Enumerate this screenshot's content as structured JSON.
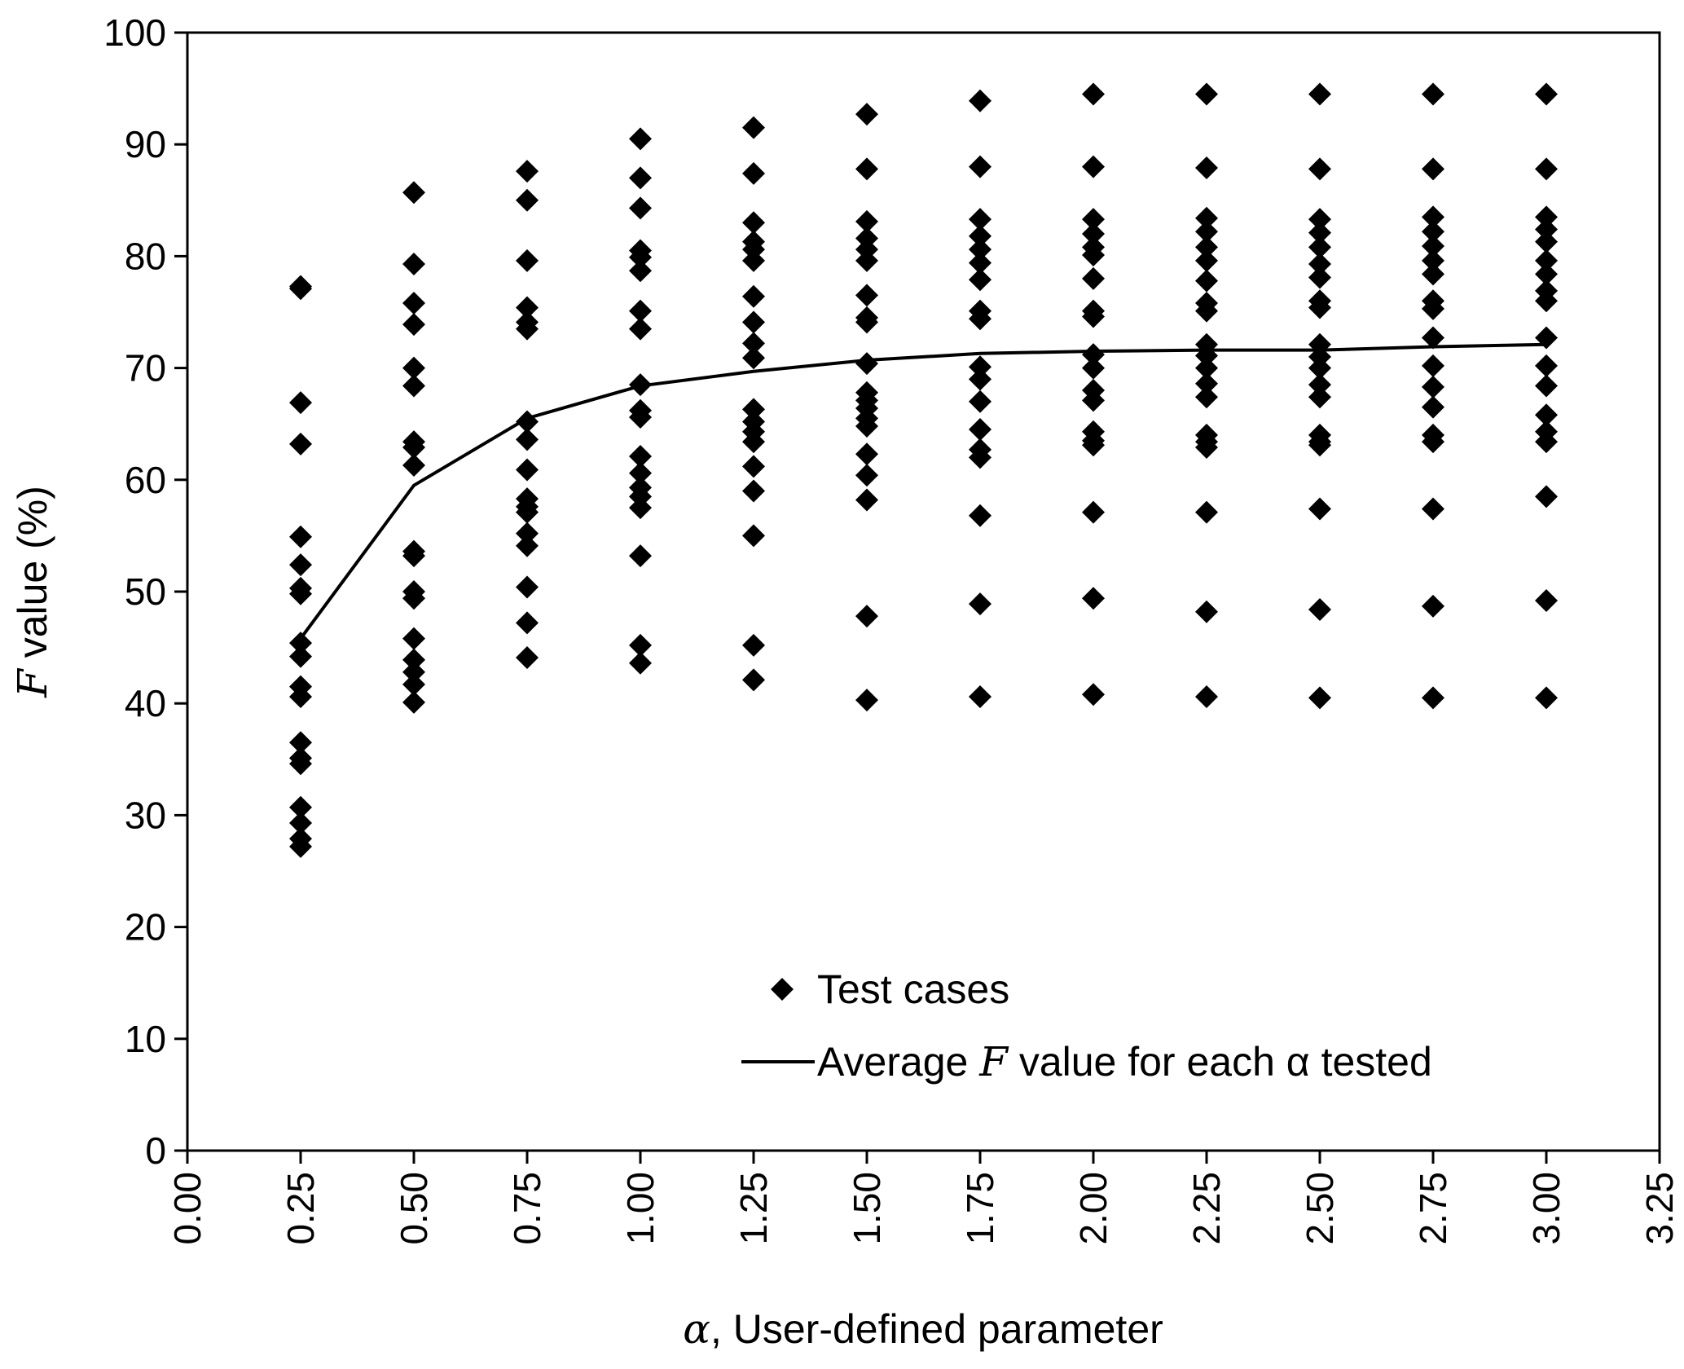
{
  "chart_data": {
    "type": "scatter",
    "title": "",
    "xlabel_symbol": "α",
    "xlabel_rest": ", User-defined parameter",
    "ylabel_symbol": "F",
    "ylabel_rest": " value (%)",
    "xlim": [
      0,
      3.25
    ],
    "ylim": [
      0,
      100
    ],
    "x_ticks": [
      "0.00",
      "0.25",
      "0.50",
      "0.75",
      "1.00",
      "1.25",
      "1.50",
      "1.75",
      "2.00",
      "2.25",
      "2.50",
      "2.75",
      "3.00",
      "3.25"
    ],
    "y_ticks": [
      "0",
      "10",
      "20",
      "30",
      "40",
      "50",
      "60",
      "70",
      "80",
      "90",
      "100"
    ],
    "grid": false,
    "legend_position": "bottom-center",
    "series": [
      {
        "name": "Test cases",
        "kind": "scatter",
        "marker": "diamond",
        "color": "#000000",
        "groups": [
          {
            "x": 0.25,
            "y": [
              77.3,
              77.1,
              66.9,
              63.2,
              54.9,
              52.4,
              50.3,
              49.8,
              45.4,
              44.2,
              41.5,
              40.6,
              36.5,
              35.1,
              34.6,
              30.7,
              29.3,
              27.9,
              27.2
            ]
          },
          {
            "x": 0.5,
            "y": [
              85.7,
              79.3,
              75.8,
              73.9,
              70.0,
              68.4,
              63.4,
              62.9,
              61.3,
              53.6,
              53.2,
              50.0,
              49.4,
              45.8,
              43.9,
              42.8,
              41.7,
              40.1
            ]
          },
          {
            "x": 0.75,
            "y": [
              87.6,
              85.0,
              79.6,
              75.4,
              74.1,
              73.5,
              65.2,
              63.6,
              60.9,
              58.3,
              57.6,
              57.1,
              55.2,
              54.1,
              50.4,
              47.2,
              44.1
            ]
          },
          {
            "x": 1.0,
            "y": [
              90.5,
              87.0,
              84.3,
              80.5,
              79.9,
              78.7,
              75.1,
              73.5,
              68.5,
              66.2,
              65.6,
              62.1,
              60.6,
              59.3,
              58.5,
              57.5,
              53.2,
              45.2,
              43.6
            ]
          },
          {
            "x": 1.25,
            "y": [
              91.5,
              87.4,
              83.0,
              81.3,
              80.6,
              79.6,
              76.4,
              74.1,
              72.2,
              70.9,
              66.3,
              65.2,
              64.3,
              63.4,
              61.2,
              59.0,
              55.0,
              45.2,
              42.1
            ]
          },
          {
            "x": 1.5,
            "y": [
              92.7,
              87.8,
              83.1,
              81.6,
              80.6,
              79.6,
              76.5,
              74.5,
              74.1,
              70.4,
              67.8,
              67.1,
              66.4,
              65.5,
              64.8,
              62.3,
              60.4,
              58.2,
              47.8,
              40.3
            ]
          },
          {
            "x": 1.75,
            "y": [
              93.9,
              88.0,
              83.3,
              81.8,
              80.6,
              79.4,
              77.9,
              75.1,
              74.4,
              70.1,
              69.0,
              67.0,
              64.5,
              62.7,
              62.0,
              56.8,
              48.9,
              40.6
            ]
          },
          {
            "x": 2.0,
            "y": [
              94.5,
              88.0,
              83.3,
              82.0,
              80.8,
              80.1,
              78.0,
              75.1,
              74.6,
              71.2,
              70.0,
              68.0,
              67.1,
              64.3,
              63.5,
              63.1,
              57.1,
              49.4,
              40.8
            ]
          },
          {
            "x": 2.25,
            "y": [
              94.5,
              87.9,
              83.4,
              82.2,
              80.8,
              79.6,
              77.8,
              75.8,
              75.1,
              72.1,
              71.1,
              70.0,
              68.6,
              67.4,
              64.0,
              63.4,
              62.9,
              57.1,
              48.2,
              40.6
            ]
          },
          {
            "x": 2.5,
            "y": [
              94.5,
              87.8,
              83.3,
              82.1,
              80.8,
              79.3,
              78.1,
              76.0,
              75.4,
              72.1,
              71.0,
              70.0,
              68.5,
              67.4,
              64.0,
              63.4,
              63.1,
              57.4,
              48.4,
              40.5
            ]
          },
          {
            "x": 2.75,
            "y": [
              94.5,
              87.8,
              83.5,
              82.2,
              80.9,
              79.6,
              78.4,
              76.0,
              75.3,
              72.7,
              70.2,
              68.3,
              66.5,
              64.0,
              63.4,
              57.4,
              48.7,
              40.5
            ]
          },
          {
            "x": 3.0,
            "y": [
              94.5,
              87.8,
              83.5,
              82.4,
              81.3,
              79.6,
              78.4,
              76.9,
              76.0,
              72.7,
              70.2,
              68.4,
              65.8,
              64.3,
              63.4,
              58.5,
              49.2,
              40.5
            ]
          }
        ]
      },
      {
        "name_before": "Average ",
        "name_symbol": "F",
        "name_after": " value for each α tested",
        "kind": "line",
        "color": "#000000",
        "x": [
          0.25,
          0.5,
          0.75,
          1.0,
          1.25,
          1.5,
          1.75,
          2.0,
          2.25,
          2.5,
          2.75,
          3.0
        ],
        "y": [
          45.8,
          59.5,
          65.5,
          68.4,
          69.7,
          70.7,
          71.3,
          71.5,
          71.6,
          71.6,
          71.9,
          72.1
        ]
      }
    ]
  }
}
